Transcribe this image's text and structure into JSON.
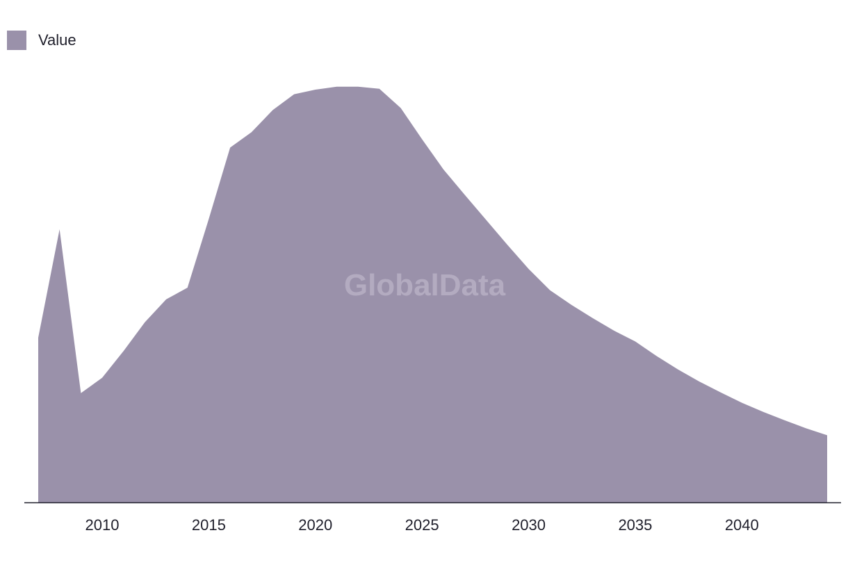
{
  "chart_data": {
    "type": "area",
    "legend": {
      "label": "Value",
      "position": "top-left"
    },
    "watermark": "GlobalData",
    "x": [
      2007,
      2008,
      2009,
      2010,
      2011,
      2012,
      2013,
      2014,
      2015,
      2016,
      2017,
      2018,
      2019,
      2020,
      2021,
      2022,
      2023,
      2024,
      2025,
      2026,
      2027,
      2028,
      2029,
      2030,
      2031,
      2032,
      2033,
      2034,
      2035,
      2036,
      2037,
      2038,
      2039,
      2040,
      2041,
      2042,
      2043,
      2044
    ],
    "values": [
      39.5,
      65.5,
      26.2,
      29.9,
      36.3,
      43.2,
      48.7,
      51.5,
      68.0,
      85.1,
      88.8,
      94.1,
      97.9,
      99.0,
      99.7,
      99.7,
      99.2,
      94.6,
      87.1,
      79.9,
      73.8,
      67.8,
      61.8,
      56.0,
      50.9,
      47.4,
      44.2,
      41.2,
      38.6,
      35.1,
      31.9,
      29.0,
      26.4,
      23.9,
      21.7,
      19.7,
      17.8,
      16.1
    ],
    "x_ticks": [
      2010,
      2015,
      2020,
      2025,
      2030,
      2035,
      2040
    ],
    "xlim": [
      2007,
      2044
    ],
    "ylim": [
      0,
      100
    ],
    "grid": false
  },
  "colors": {
    "fill": "#9a91aa",
    "axis": "#1f1f2b",
    "watermark": "#b3abc0"
  }
}
